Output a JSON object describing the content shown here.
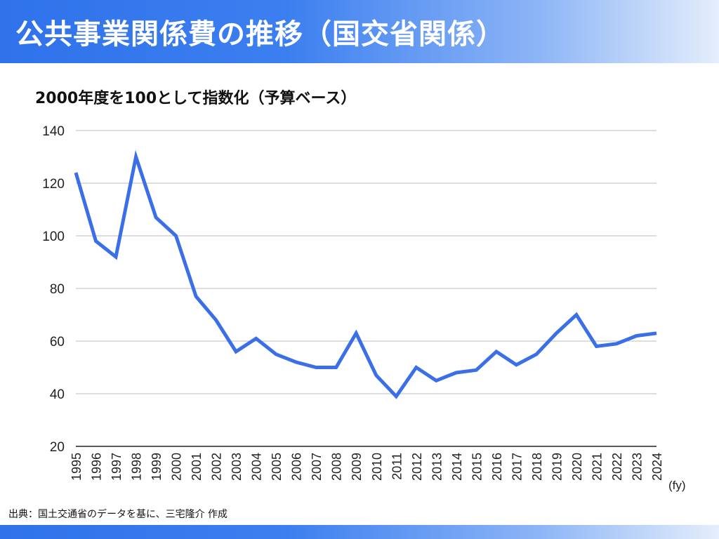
{
  "title": "公共事業関係費の推移（国交省関係）",
  "source_note": "出典：国土交通省のデータを基に、三宅隆介 作成",
  "colors": {
    "title_bar": "#2f72ea",
    "line": "#3a6fe8",
    "grid": "#bdbdbd"
  },
  "chart_data": {
    "type": "line",
    "title": "2000年度を100として指数化（予算ベース）",
    "xlabel": "(fy)",
    "ylabel": "",
    "x": [
      "1995",
      "1996",
      "1997",
      "1998",
      "1999",
      "2000",
      "2001",
      "2002",
      "2003",
      "2004",
      "2005",
      "2006",
      "2007",
      "2008",
      "2009",
      "2010",
      "2011",
      "2012",
      "2013",
      "2014",
      "2015",
      "2016",
      "2017",
      "2018",
      "2019",
      "2020",
      "2021",
      "2022",
      "2023",
      "2024"
    ],
    "series": [
      {
        "values": [
          124,
          98,
          92,
          130,
          107,
          100,
          77,
          68,
          56,
          61,
          55,
          52,
          50,
          50,
          63,
          47,
          39,
          50,
          45,
          48,
          49,
          56,
          51,
          55,
          63,
          70,
          58,
          59,
          62,
          63
        ]
      }
    ],
    "ylim": [
      20,
      140
    ],
    "yticks": [
      "20",
      "40",
      "60",
      "80",
      "100",
      "120",
      "140"
    ],
    "grid": "horizontal",
    "legend": "none"
  }
}
